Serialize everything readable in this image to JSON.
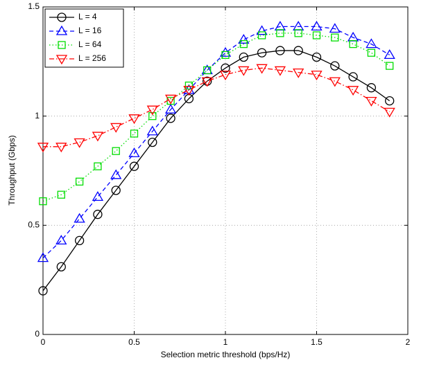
{
  "chart_data": {
    "type": "line",
    "xlabel": "Selection metric threshold (bps/Hz)",
    "ylabel": "Throughput (Gbps)",
    "x": [
      0,
      0.1,
      0.2,
      0.3,
      0.4,
      0.5,
      0.6,
      0.7,
      0.8,
      0.9,
      1.0,
      1.1,
      1.2,
      1.3,
      1.4,
      1.5,
      1.6,
      1.7,
      1.8,
      1.9
    ],
    "series": [
      {
        "name": "L = 4",
        "color": "#000000",
        "marker": "circle",
        "linestyle": "solid",
        "values": [
          0.2,
          0.31,
          0.43,
          0.55,
          0.66,
          0.77,
          0.88,
          0.99,
          1.08,
          1.16,
          1.22,
          1.27,
          1.29,
          1.3,
          1.3,
          1.27,
          1.23,
          1.18,
          1.13,
          1.07
        ]
      },
      {
        "name": "L = 16",
        "color": "#0000ff",
        "marker": "triangle-up",
        "linestyle": "dashed",
        "values": [
          0.35,
          0.43,
          0.53,
          0.63,
          0.73,
          0.83,
          0.93,
          1.03,
          1.12,
          1.21,
          1.29,
          1.35,
          1.39,
          1.41,
          1.41,
          1.41,
          1.4,
          1.36,
          1.33,
          1.28
        ]
      },
      {
        "name": "L = 64",
        "color": "#00dd00",
        "marker": "square",
        "linestyle": "dotted",
        "values": [
          0.61,
          0.64,
          0.7,
          0.77,
          0.84,
          0.92,
          1.0,
          1.07,
          1.14,
          1.21,
          1.28,
          1.33,
          1.37,
          1.38,
          1.38,
          1.37,
          1.36,
          1.33,
          1.29,
          1.23
        ]
      },
      {
        "name": "L = 256",
        "color": "#ff0000",
        "marker": "triangle-down",
        "linestyle": "dashdot",
        "values": [
          0.86,
          0.86,
          0.88,
          0.91,
          0.95,
          0.99,
          1.03,
          1.08,
          1.12,
          1.16,
          1.19,
          1.21,
          1.22,
          1.21,
          1.2,
          1.19,
          1.16,
          1.12,
          1.07,
          1.02
        ]
      }
    ],
    "xlim": [
      0,
      2
    ],
    "xticks": [
      0,
      0.5,
      1,
      1.5,
      2
    ],
    "ylim": [
      0,
      1.5
    ],
    "yticks": [
      0,
      0.5,
      1,
      1.5
    ],
    "grid": true,
    "legend": "upper left"
  }
}
